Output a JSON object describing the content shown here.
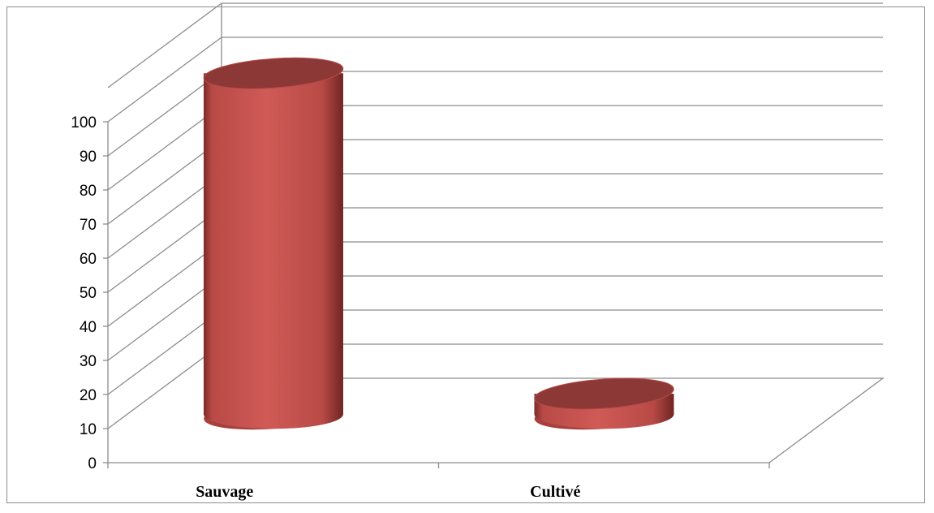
{
  "chart_data": {
    "type": "bar",
    "style": "3d-cylinder",
    "categories": [
      "Sauvage",
      "Cultivé"
    ],
    "values": [
      100,
      6
    ],
    "ylim": [
      0,
      100
    ],
    "yticks": [
      "0",
      "10",
      "20",
      "30",
      "40",
      "50",
      "60",
      "70",
      "80",
      "90",
      "100"
    ],
    "grid": true,
    "legend": "none",
    "colors": {
      "bar": "#c0504d",
      "bar_dark": "#7a2b29",
      "bar_top": "#8b3836",
      "grid": "#8c8c8c"
    }
  }
}
